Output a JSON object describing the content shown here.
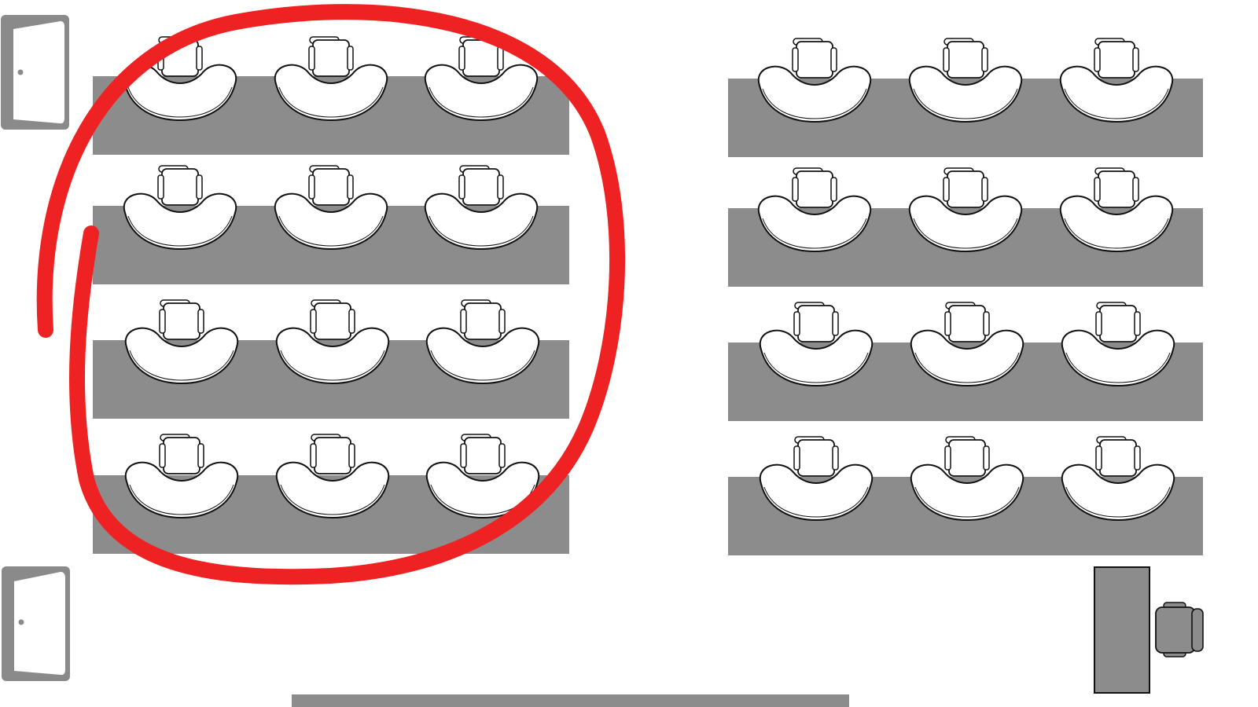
{
  "colors": {
    "desk": "#8c8c8c",
    "door_frame": "#8a8a8a",
    "seat_fill": "#ffffff",
    "seat_outline": "#111111",
    "highlight": "#ee2222",
    "teacher": "#8c8c8c"
  },
  "icons": {
    "door": "door-icon",
    "student_seat": "curved-seat-icon",
    "office_chair": "office-chair-icon",
    "highlight": "freehand-circle-mark"
  },
  "room": {
    "doors": 2,
    "blocks": [
      {
        "side": "left",
        "rows": 4,
        "seats_per_row": 3,
        "highlighted": true
      },
      {
        "side": "right",
        "rows": 4,
        "seats_per_row": 3,
        "highlighted": false
      }
    ],
    "teacher_desk": {
      "side": "bottom-right"
    },
    "front_board": {
      "side": "bottom-center"
    }
  }
}
